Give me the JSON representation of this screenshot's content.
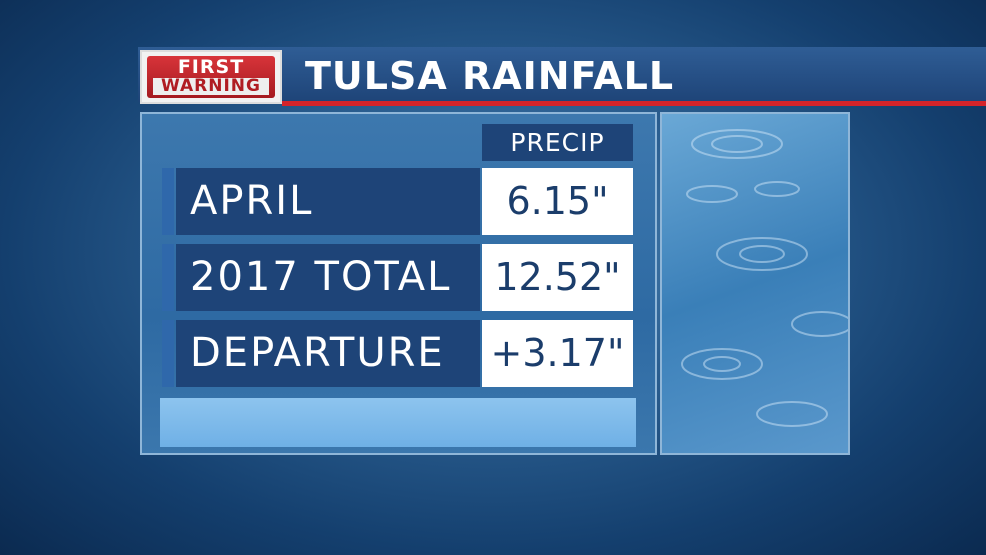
{
  "logo": {
    "line1": "FIRST",
    "line2": "WARNING"
  },
  "title": "TULSA RAINFALL",
  "table": {
    "header": "PRECIP",
    "rows": [
      [
        "APRIL",
        "6.15\""
      ],
      [
        "2017 TOTAL",
        "12.52\""
      ],
      [
        "DEPARTURE",
        "+3.17\""
      ]
    ]
  }
}
